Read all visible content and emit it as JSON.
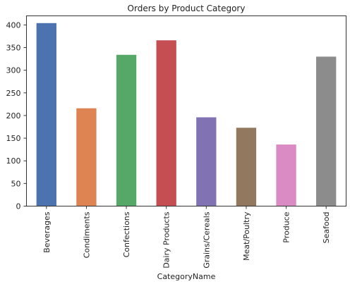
{
  "chart_data": {
    "type": "bar",
    "title": "Orders by Product Category",
    "xlabel": "CategoryName",
    "ylabel": "",
    "categories": [
      "Beverages",
      "Condiments",
      "Confections",
      "Dairy Products",
      "Grains/Cereals",
      "Meat/Poultry",
      "Produce",
      "Seafood"
    ],
    "values": [
      404,
      216,
      334,
      366,
      196,
      173,
      136,
      330
    ],
    "colors": [
      "#4c72b0",
      "#dd8452",
      "#55a868",
      "#c44e52",
      "#8172b3",
      "#937860",
      "#da8bc3",
      "#8c8c8c"
    ],
    "ylim": [
      0,
      420
    ],
    "yticks": [
      0,
      50,
      100,
      150,
      200,
      250,
      300,
      350,
      400
    ],
    "grid": false,
    "legend": "none"
  }
}
